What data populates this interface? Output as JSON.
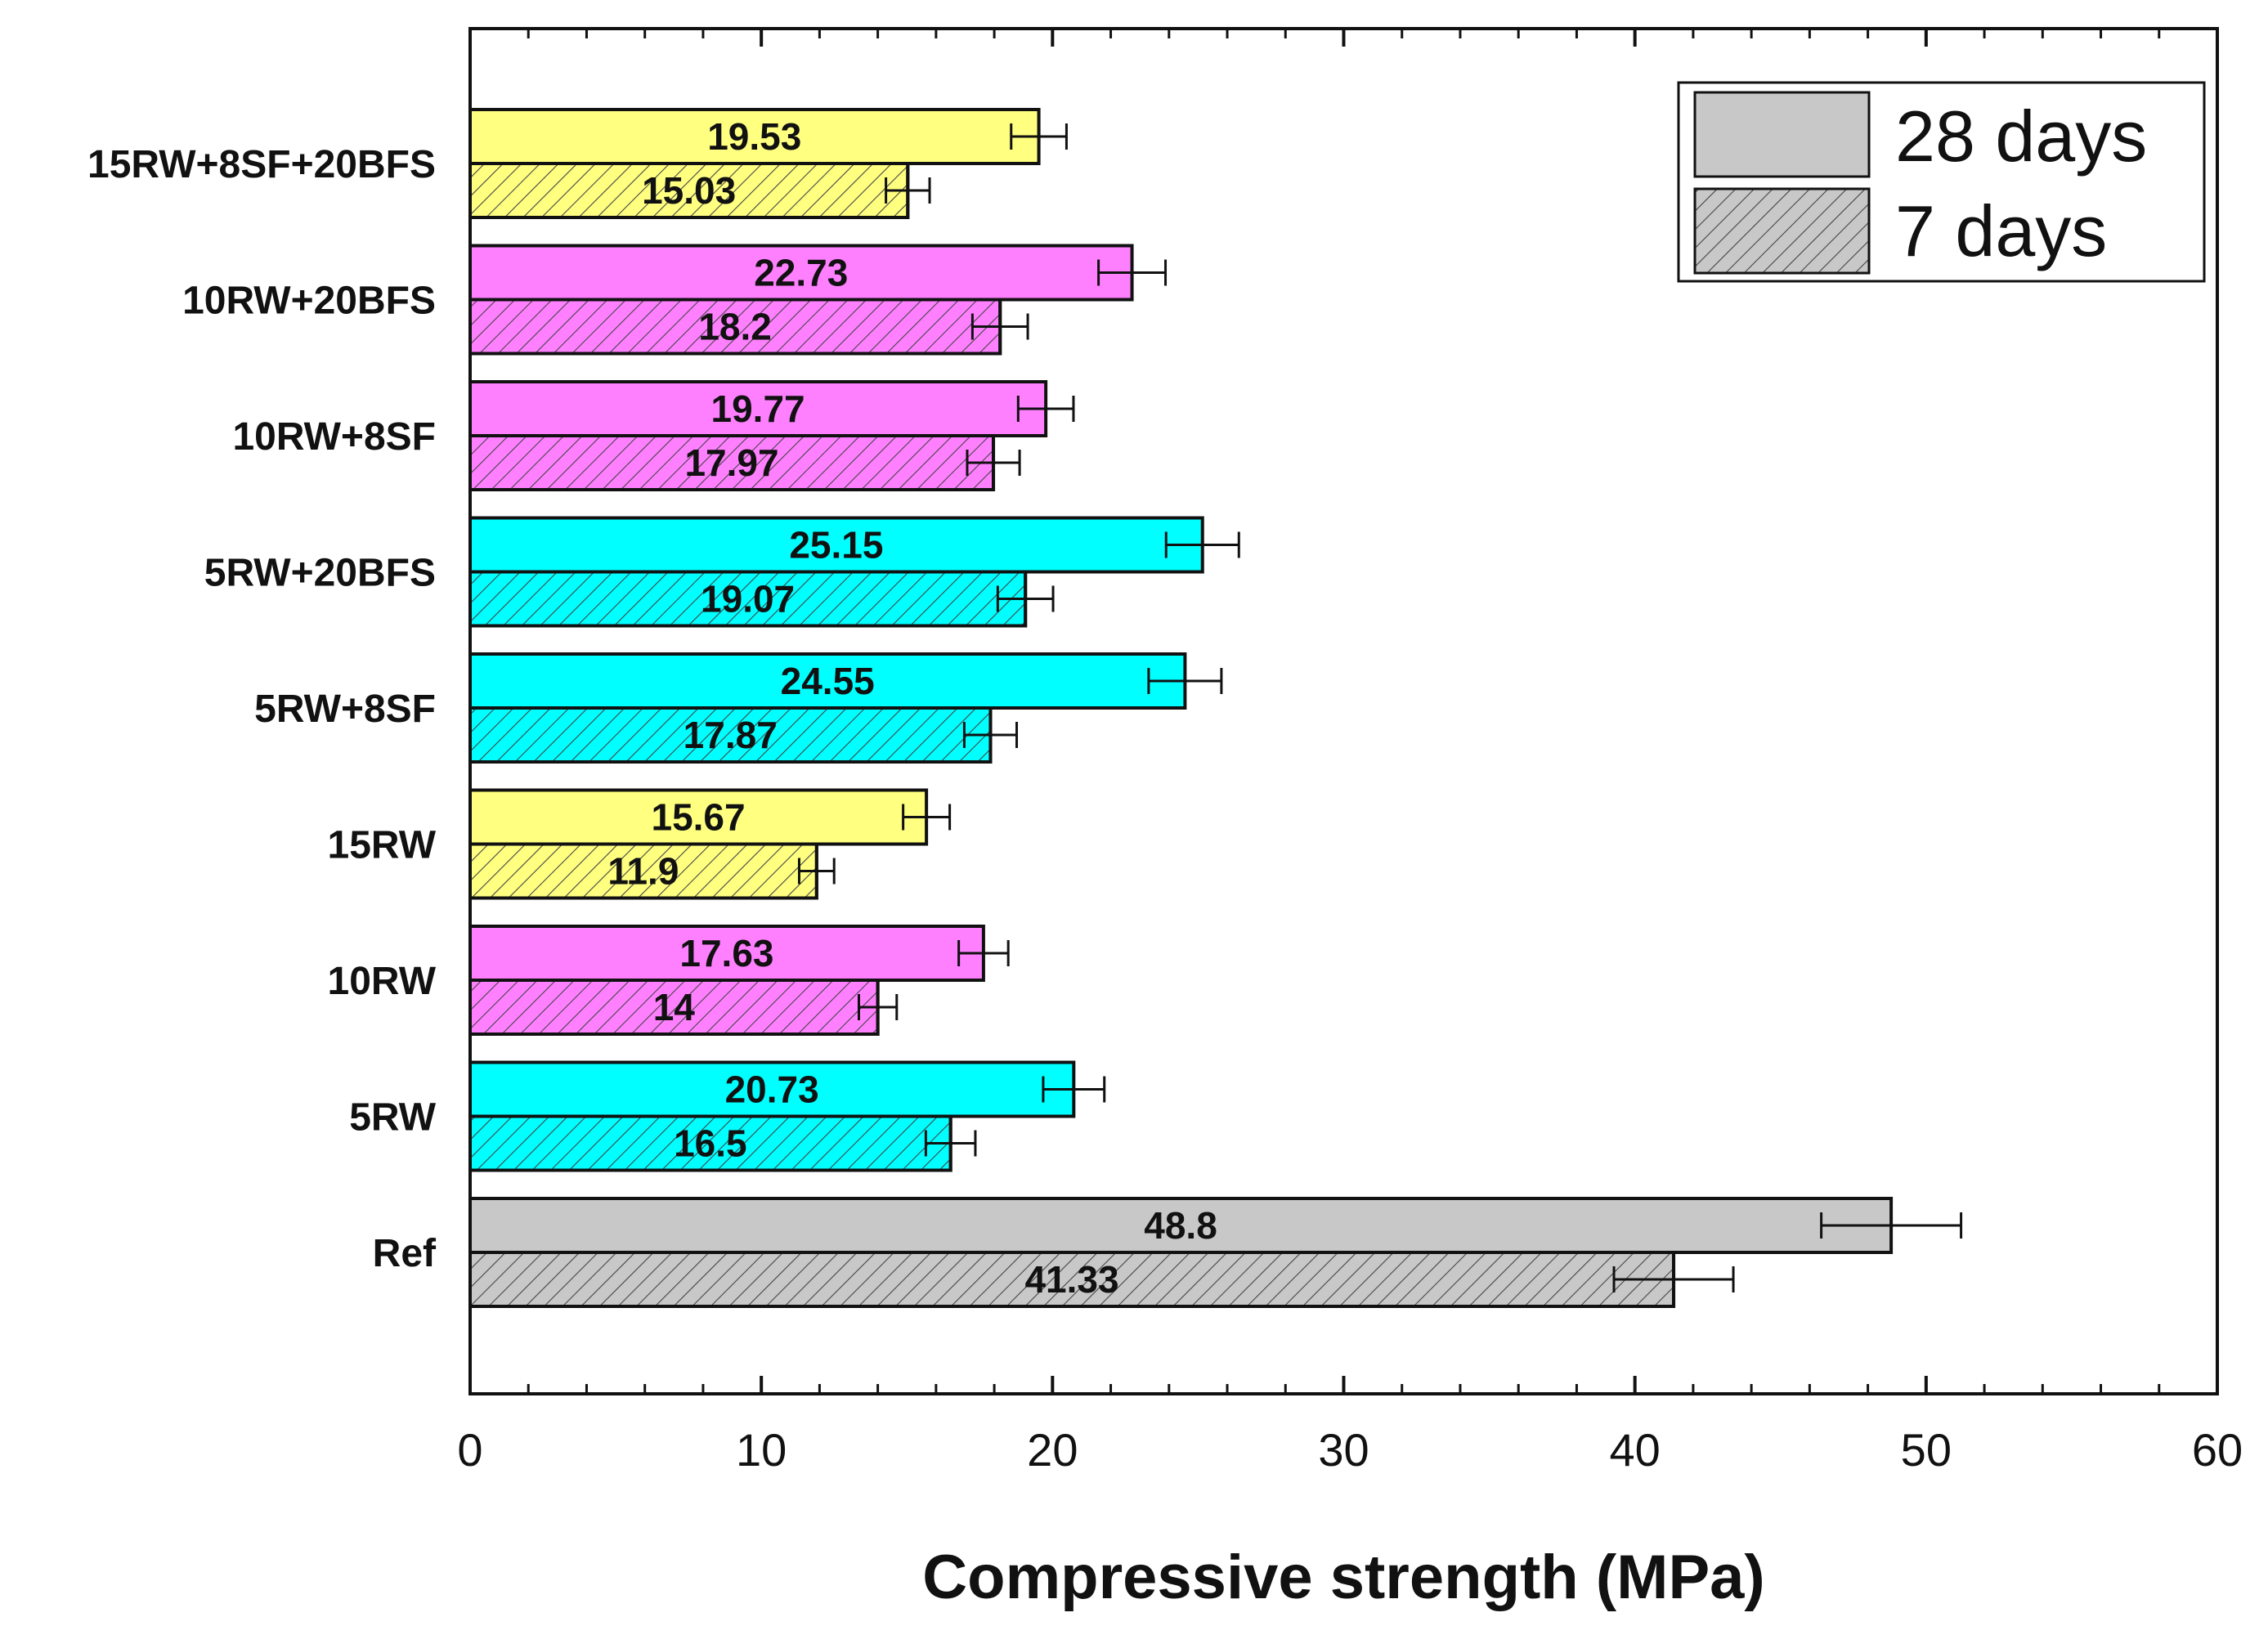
{
  "chart_data": {
    "type": "bar",
    "orientation": "horizontal",
    "xlabel": "Compressive strength (MPa)",
    "ylabel": "",
    "xlim": [
      0,
      60
    ],
    "x_ticks": [
      "0",
      "10",
      "20",
      "30",
      "40",
      "50",
      "60"
    ],
    "legend": {
      "placement": "top-right",
      "entries": [
        {
          "label": "28 days",
          "pattern": "solid"
        },
        {
          "label": "7 days",
          "pattern": "hatched"
        }
      ]
    },
    "categories": [
      "Ref",
      "5RW",
      "10RW",
      "15RW",
      "5RW+8SF",
      "5RW+20BFS",
      "10RW+8SF",
      "10RW+20BFS",
      "15RW+8SF+20BFS"
    ],
    "category_colors": [
      "#c8c8c8",
      "#00ffff",
      "#ff80ff",
      "#ffff80",
      "#00ffff",
      "#00ffff",
      "#ff80ff",
      "#ff80ff",
      "#ffff80"
    ],
    "series": [
      {
        "name": "28 days",
        "values": [
          48.8,
          20.73,
          17.63,
          15.67,
          24.55,
          25.15,
          19.77,
          22.73,
          19.53
        ],
        "labels": [
          "48.8",
          "20.73",
          "17.63",
          "15.67",
          "24.55",
          "25.15",
          "19.77",
          "22.73",
          "19.53"
        ],
        "errors": [
          2.4,
          1.05,
          0.85,
          0.8,
          1.25,
          1.25,
          0.95,
          1.15,
          0.95
        ]
      },
      {
        "name": "7 days",
        "values": [
          41.33,
          16.5,
          14,
          11.9,
          17.87,
          19.07,
          17.97,
          18.2,
          15.03
        ],
        "labels": [
          "41.33",
          "16.5",
          "14",
          "11.9",
          "17.87",
          "19.07",
          "17.97",
          "18.2",
          "15.03"
        ],
        "errors": [
          2.05,
          0.85,
          0.65,
          0.6,
          0.9,
          0.95,
          0.9,
          0.95,
          0.75
        ]
      }
    ]
  }
}
